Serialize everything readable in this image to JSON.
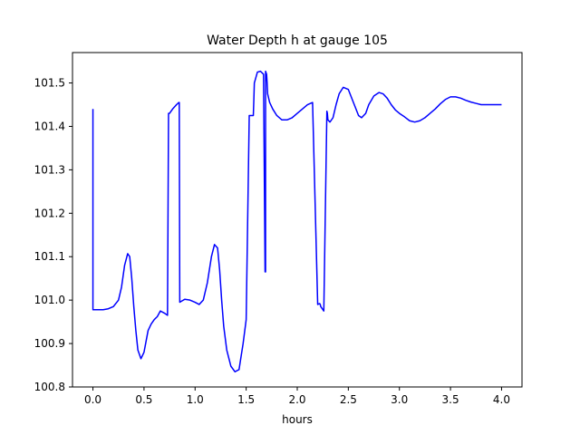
{
  "chart_data": {
    "type": "line",
    "title": "Water Depth h at gauge 105",
    "xlabel": "hours",
    "ylabel": "",
    "xlim": [
      -0.2,
      4.2
    ],
    "ylim": [
      100.8,
      101.57
    ],
    "xticks": [
      0.0,
      0.5,
      1.0,
      1.5,
      2.0,
      2.5,
      3.0,
      3.5,
      4.0
    ],
    "xtick_labels": [
      "0.0",
      "0.5",
      "1.0",
      "1.5",
      "2.0",
      "2.5",
      "3.0",
      "3.5",
      "4.0"
    ],
    "yticks": [
      100.8,
      100.9,
      101.0,
      101.1,
      101.2,
      101.3,
      101.4,
      101.5
    ],
    "ytick_labels": [
      "100.8",
      "100.9",
      "101.0",
      "101.1",
      "101.2",
      "101.3",
      "101.4",
      "101.5"
    ],
    "grid": false,
    "series": [
      {
        "color": "#0000ff",
        "x": [
          0.0,
          0.0,
          0.05,
          0.1,
          0.15,
          0.2,
          0.25,
          0.28,
          0.31,
          0.34,
          0.36,
          0.38,
          0.4,
          0.42,
          0.44,
          0.47,
          0.5,
          0.52,
          0.54,
          0.57,
          0.6,
          0.63,
          0.66,
          0.7,
          0.73,
          0.74,
          0.75,
          0.78,
          0.81,
          0.84,
          0.845,
          0.85,
          0.87,
          0.9,
          0.95,
          1.0,
          1.04,
          1.08,
          1.12,
          1.16,
          1.19,
          1.22,
          1.24,
          1.26,
          1.28,
          1.31,
          1.35,
          1.39,
          1.43,
          1.47,
          1.5,
          1.53,
          1.57,
          1.575,
          1.58,
          1.61,
          1.64,
          1.67,
          1.685,
          1.69,
          1.69,
          1.7,
          1.705,
          1.71,
          1.73,
          1.76,
          1.8,
          1.85,
          1.9,
          1.95,
          2.0,
          2.05,
          2.1,
          2.15,
          2.2,
          2.22,
          2.225,
          2.23,
          2.26,
          2.29,
          2.295,
          2.3,
          2.32,
          2.35,
          2.38,
          2.41,
          2.45,
          2.5,
          2.55,
          2.6,
          2.63,
          2.67,
          2.7,
          2.75,
          2.8,
          2.84,
          2.88,
          2.92,
          2.96,
          3.0,
          3.05,
          3.1,
          3.15,
          3.2,
          3.25,
          3.3,
          3.35,
          3.4,
          3.45,
          3.5,
          3.55,
          3.6,
          3.65,
          3.7,
          3.75,
          3.8,
          3.85,
          3.9,
          3.95,
          4.0
        ],
        "y": [
          101.44,
          100.978,
          100.978,
          100.978,
          100.98,
          100.985,
          101.0,
          101.03,
          101.08,
          101.107,
          101.1,
          101.05,
          100.985,
          100.93,
          100.885,
          100.865,
          100.88,
          100.905,
          100.93,
          100.945,
          100.955,
          100.962,
          100.975,
          100.97,
          100.965,
          101.43,
          101.43,
          101.44,
          101.448,
          101.455,
          101.455,
          100.995,
          100.998,
          101.002,
          101.0,
          100.995,
          100.99,
          101.0,
          101.04,
          101.1,
          101.128,
          101.12,
          101.07,
          101.0,
          100.94,
          100.885,
          100.848,
          100.835,
          100.84,
          100.9,
          100.955,
          101.425,
          101.425,
          101.46,
          101.5,
          101.525,
          101.527,
          101.52,
          101.065,
          101.065,
          101.527,
          101.52,
          101.5,
          101.475,
          101.455,
          101.44,
          101.425,
          101.415,
          101.415,
          101.42,
          101.43,
          101.44,
          101.45,
          101.455,
          100.99,
          100.992,
          100.99,
          100.985,
          100.975,
          101.435,
          101.43,
          101.415,
          101.41,
          101.42,
          101.45,
          101.475,
          101.49,
          101.485,
          101.455,
          101.425,
          101.42,
          101.43,
          101.45,
          101.47,
          101.478,
          101.475,
          101.465,
          101.45,
          101.438,
          101.43,
          101.422,
          101.413,
          101.41,
          101.413,
          101.42,
          101.43,
          101.44,
          101.452,
          101.462,
          101.468,
          101.468,
          101.465,
          101.46,
          101.456,
          101.453,
          101.45,
          101.45,
          101.45,
          101.45,
          101.45
        ]
      }
    ]
  }
}
